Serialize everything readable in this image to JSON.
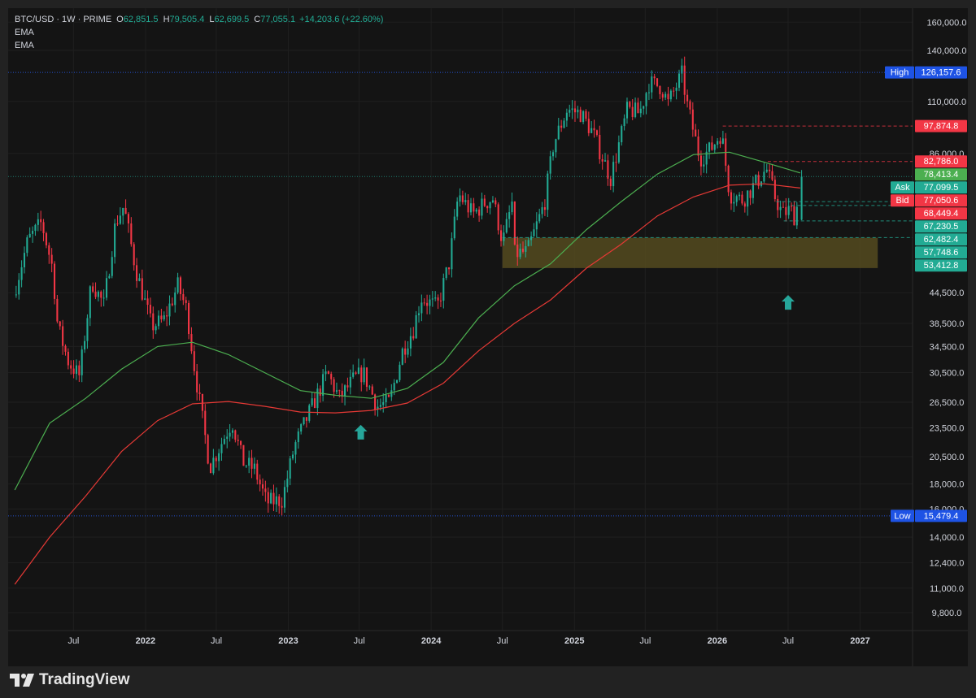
{
  "header": {
    "symbol": "BTC/USD · 1W · PRIME",
    "open_label": "O",
    "open": "62,851.5",
    "high_label": "H",
    "high": "79,505.4",
    "low_label": "L",
    "low": "62,699.5",
    "close_label": "C",
    "close": "77,055.1",
    "change": "+14,203.6 (+22.60%)",
    "indicators": [
      "EMA",
      "EMA"
    ]
  },
  "branding": {
    "name": "TradingView"
  },
  "colors": {
    "up": "#22ab94",
    "down": "#f23645",
    "ema_fast": "#4caf50",
    "ema_slow": "#e53935",
    "bg": "#141414",
    "axis_text": "#d1d4dc",
    "zone": "#5c5220"
  },
  "chart_data": {
    "type": "candlestick",
    "symbol": "BTC/USD",
    "interval": "1W",
    "scale": "log",
    "y_ticks": [
      9800,
      11000,
      12400,
      14000,
      16000,
      18000,
      20500,
      23500,
      26500,
      30500,
      34500,
      38500,
      44500,
      86000,
      110000,
      140000,
      160000
    ],
    "x_ticks": [
      {
        "label": "Jul",
        "date": "2021-07-01"
      },
      {
        "label": "2022",
        "date": "2022-01-01"
      },
      {
        "label": "Jul",
        "date": "2022-07-01"
      },
      {
        "label": "2023",
        "date": "2023-01-01"
      },
      {
        "label": "Jul",
        "date": "2023-07-01"
      },
      {
        "label": "2024",
        "date": "2024-01-01"
      },
      {
        "label": "Jul",
        "date": "2024-07-01"
      },
      {
        "label": "2025",
        "date": "2025-01-01"
      },
      {
        "label": "Jul",
        "date": "2025-07-01"
      },
      {
        "label": "2026",
        "date": "2026-01-01"
      },
      {
        "label": "Jul",
        "date": "2026-07-01"
      },
      {
        "label": "2027",
        "date": "2027-01-01"
      }
    ],
    "price_path": [
      [
        "2021-02-01",
        44000
      ],
      [
        "2021-03-10",
        57000
      ],
      [
        "2021-04-14",
        62000
      ],
      [
        "2021-05-12",
        50000
      ],
      [
        "2021-05-25",
        38000
      ],
      [
        "2021-06-22",
        32000
      ],
      [
        "2021-07-20",
        30000
      ],
      [
        "2021-08-20",
        47000
      ],
      [
        "2021-09-20",
        42000
      ],
      [
        "2021-10-20",
        62000
      ],
      [
        "2021-11-10",
        67000
      ],
      [
        "2021-12-10",
        50000
      ],
      [
        "2022-01-20",
        38000
      ],
      [
        "2022-02-20",
        39000
      ],
      [
        "2022-03-28",
        46000
      ],
      [
        "2022-04-20",
        41000
      ],
      [
        "2022-05-10",
        31000
      ],
      [
        "2022-06-18",
        19500
      ],
      [
        "2022-07-25",
        22500
      ],
      [
        "2022-08-14",
        24200
      ],
      [
        "2022-09-10",
        20000
      ],
      [
        "2022-10-10",
        19300
      ],
      [
        "2022-11-10",
        16500
      ],
      [
        "2022-12-20",
        16700
      ],
      [
        "2023-01-20",
        21500
      ],
      [
        "2023-02-15",
        24000
      ],
      [
        "2023-03-20",
        27500
      ],
      [
        "2023-04-14",
        30400
      ],
      [
        "2023-05-15",
        27000
      ],
      [
        "2023-06-20",
        29500
      ],
      [
        "2023-07-15",
        30500
      ],
      [
        "2023-08-20",
        26000
      ],
      [
        "2023-09-20",
        26500
      ],
      [
        "2023-10-24",
        34000
      ],
      [
        "2023-11-20",
        37500
      ],
      [
        "2023-12-10",
        43500
      ],
      [
        "2024-01-20",
        41500
      ],
      [
        "2024-02-20",
        51500
      ],
      [
        "2024-03-14",
        71000
      ],
      [
        "2024-04-20",
        64500
      ],
      [
        "2024-05-20",
        68000
      ],
      [
        "2024-06-10",
        69500
      ],
      [
        "2024-07-05",
        56500
      ],
      [
        "2024-07-29",
        68000
      ],
      [
        "2024-08-05",
        53500
      ],
      [
        "2024-09-06",
        54000
      ],
      [
        "2024-10-20",
        68000
      ],
      [
        "2024-11-12",
        90000
      ],
      [
        "2024-12-17",
        106000
      ],
      [
        "2025-01-20",
        104000
      ],
      [
        "2025-02-20",
        95000
      ],
      [
        "2025-04-07",
        76500
      ],
      [
        "2025-05-20",
        106000
      ],
      [
        "2025-06-20",
        104000
      ],
      [
        "2025-07-14",
        120000
      ],
      [
        "2025-08-14",
        118000
      ],
      [
        "2025-09-01",
        109000
      ],
      [
        "2025-10-06",
        125000
      ],
      [
        "2025-10-20",
        108000
      ],
      [
        "2025-11-21",
        84000
      ],
      [
        "2025-12-20",
        88000
      ],
      [
        "2026-01-15",
        95000
      ],
      [
        "2026-02-05",
        71000
      ],
      [
        "2026-03-10",
        69000
      ],
      [
        "2026-04-20",
        76000
      ],
      [
        "2026-05-10",
        80000
      ],
      [
        "2026-06-01",
        70000
      ],
      [
        "2026-06-20",
        64500
      ],
      [
        "2026-07-10",
        66000
      ],
      [
        "2026-07-25",
        63000
      ],
      [
        "2026-08-01",
        77055
      ]
    ],
    "ema_fast": [
      [
        "2021-02-01",
        17500
      ],
      [
        "2021-05-01",
        24000
      ],
      [
        "2021-08-01",
        27000
      ],
      [
        "2021-11-01",
        31000
      ],
      [
        "2022-02-01",
        34500
      ],
      [
        "2022-05-01",
        35200
      ],
      [
        "2022-08-01",
        33200
      ],
      [
        "2022-11-01",
        30500
      ],
      [
        "2023-02-01",
        28000
      ],
      [
        "2023-05-01",
        27400
      ],
      [
        "2023-08-01",
        27000
      ],
      [
        "2023-11-01",
        28300
      ],
      [
        "2024-02-01",
        32000
      ],
      [
        "2024-05-01",
        39500
      ],
      [
        "2024-08-01",
        46000
      ],
      [
        "2024-11-01",
        51000
      ],
      [
        "2025-02-01",
        60000
      ],
      [
        "2025-05-01",
        68500
      ],
      [
        "2025-08-01",
        78000
      ],
      [
        "2025-11-01",
        85500
      ],
      [
        "2026-02-01",
        86500
      ],
      [
        "2026-05-01",
        82500
      ],
      [
        "2026-08-01",
        78413
      ]
    ],
    "ema_slow": [
      [
        "2021-02-01",
        11200
      ],
      [
        "2021-05-01",
        14000
      ],
      [
        "2021-08-01",
        17000
      ],
      [
        "2021-11-01",
        21000
      ],
      [
        "2022-02-01",
        24300
      ],
      [
        "2022-05-01",
        26300
      ],
      [
        "2022-08-01",
        26600
      ],
      [
        "2022-11-01",
        26000
      ],
      [
        "2023-02-01",
        25300
      ],
      [
        "2023-05-01",
        25200
      ],
      [
        "2023-08-01",
        25500
      ],
      [
        "2023-11-01",
        26400
      ],
      [
        "2024-02-01",
        29000
      ],
      [
        "2024-05-01",
        33800
      ],
      [
        "2024-08-01",
        38500
      ],
      [
        "2024-11-01",
        43000
      ],
      [
        "2025-02-01",
        50000
      ],
      [
        "2025-05-01",
        56000
      ],
      [
        "2025-08-01",
        64000
      ],
      [
        "2025-11-01",
        70000
      ],
      [
        "2026-02-01",
        74000
      ],
      [
        "2026-05-01",
        74500
      ],
      [
        "2026-08-01",
        73000
      ]
    ],
    "price_tags": [
      {
        "label": "High",
        "value": "126,157.6",
        "price": 126157.6,
        "bg": "#1e53e5",
        "line": "dotted-blue"
      },
      {
        "label": "",
        "value": "97,874.8",
        "price": 97874.8,
        "bg": "#f23645",
        "line": "dashed-red",
        "line_from": "2026-01-15"
      },
      {
        "label": "",
        "value": "82,786.0",
        "price": 82786.0,
        "bg": "#f23645",
        "line": "dashed-red",
        "line_from": "2026-05-10"
      },
      {
        "label": "",
        "value": "78,413.4",
        "price": 78413.4,
        "bg": "#4caf50",
        "line": "none"
      },
      {
        "label": "Ask",
        "value": "77,099.5",
        "price": 77099.5,
        "bg": "#22ab94",
        "line": "dotted-green"
      },
      {
        "label": "Bid",
        "value": "77,050.6",
        "price": 77050.6,
        "bg": "#f23645",
        "line": "none"
      },
      {
        "label": "",
        "value": "68,449.4",
        "price": 68449.4,
        "bg": "#f23645",
        "line": "dashed-green",
        "line_from": "2026-06-01"
      },
      {
        "label": "",
        "value": "67,230.5",
        "price": 67230.5,
        "bg": "#22ab94",
        "line": "dashed-green",
        "line_from": "2026-07-10"
      },
      {
        "label": "",
        "value": "62,482.4",
        "price": 62482.4,
        "bg": "#22ab94",
        "line": "dashed-green",
        "line_from": "2026-06-20"
      },
      {
        "label": "",
        "value": "57,748.6",
        "price": 57748.6,
        "bg": "#22ab94",
        "line": "dashed-green",
        "line_from": "2024-07-01"
      },
      {
        "label": "",
        "value": "53,412.8",
        "price": 53412.8,
        "bg": "#22ab94",
        "line": "none"
      },
      {
        "label": "Low",
        "value": "15,479.4",
        "price": 15479.4,
        "bg": "#1e53e5",
        "line": "dotted-blue"
      }
    ],
    "zones": [
      {
        "from_date": "2024-07-01",
        "to_date": "2027-02-15",
        "low": 50000,
        "high": 57700
      }
    ],
    "markers": [
      {
        "type": "arrow-up",
        "date": "2023-07-05",
        "price": 23000,
        "color": "#26a69a"
      },
      {
        "type": "arrow-up",
        "date": "2026-07-01",
        "price": 42500,
        "color": "#26a69a"
      }
    ],
    "grid": true,
    "legend_position": "top-left"
  }
}
